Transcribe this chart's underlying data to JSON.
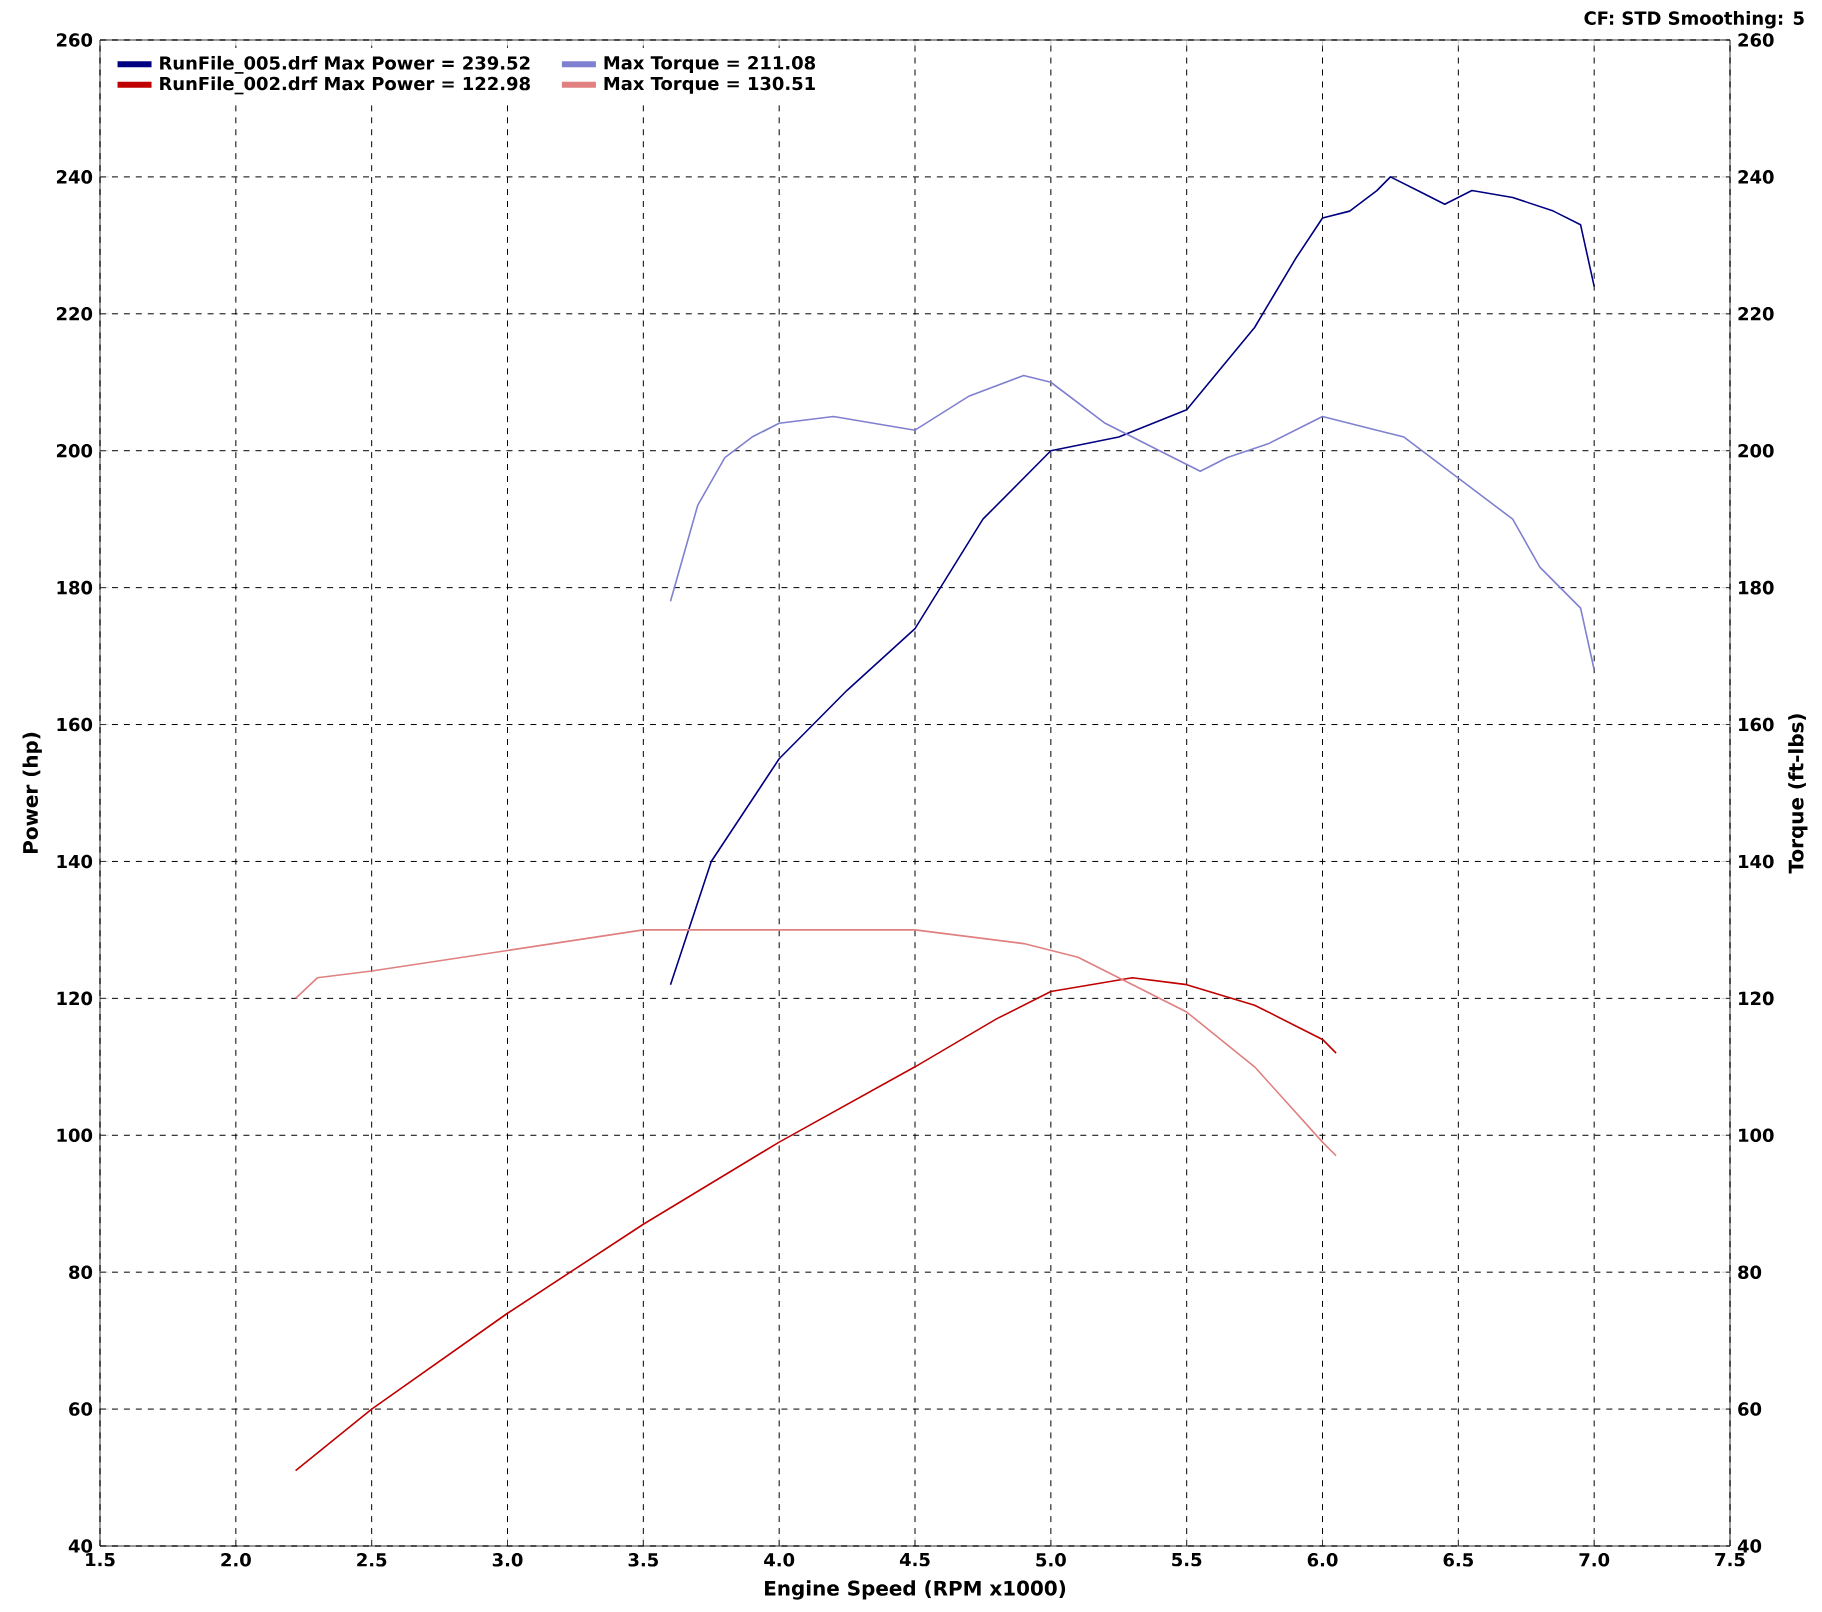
{
  "chart_data": {
    "type": "line",
    "annotations": [
      "CF: STD  Smoothing: 5"
    ],
    "xlabel": "Engine Speed (RPM x1000)",
    "ylabel": "Power (hp)",
    "y2label": "Torque (ft-lbs)",
    "xlim": [
      1.5,
      7.5
    ],
    "xticks": [
      1.5,
      {
        "value": 2,
        "label": "2.0"
      },
      2.5,
      {
        "value": 3,
        "label": "3.0"
      },
      3.5,
      {
        "value": 4,
        "label": "4.0"
      },
      4.5,
      {
        "value": 5,
        "label": "5.0"
      },
      5.5,
      {
        "value": 6,
        "label": "6.0"
      },
      6.5,
      {
        "value": 7,
        "label": "7.0"
      },
      7.5
    ],
    "ylim": [
      40,
      260
    ],
    "yticks": [
      40,
      60,
      80,
      100,
      120,
      140,
      160,
      180,
      200,
      220,
      240,
      260
    ],
    "y2lim": [
      40,
      260
    ],
    "y2ticks": [
      40,
      60,
      80,
      100,
      120,
      140,
      160,
      180,
      200,
      220,
      240,
      260
    ],
    "grid": true,
    "legend": "top left",
    "line_style": "solid",
    "series": [
      {
        "name": "RunFile_005.drf Max Power = 239.52",
        "color": "#000080",
        "x": [
          3.6,
          3.75,
          4.0,
          4.25,
          4.5,
          4.75,
          5.0,
          5.25,
          5.5,
          5.75,
          5.9,
          6.0,
          6.1,
          6.2,
          6.25,
          6.35,
          6.45,
          6.55,
          6.7,
          6.85,
          6.95,
          7.0
        ],
        "values": [
          122,
          140,
          155,
          165,
          174,
          190,
          200,
          202,
          206,
          218,
          228,
          234,
          235,
          238,
          240,
          238,
          236,
          238,
          237,
          235,
          233,
          224
        ]
      },
      {
        "name": "Max Torque = 211.08",
        "color": "#8080d0",
        "x": [
          3.6,
          3.7,
          3.8,
          3.9,
          4.0,
          4.2,
          4.5,
          4.7,
          4.9,
          5.0,
          5.2,
          5.4,
          5.55,
          5.65,
          5.8,
          6.0,
          6.2,
          6.3,
          6.5,
          6.7,
          6.8,
          6.95,
          7.0
        ],
        "values": [
          178,
          192,
          199,
          202,
          204,
          205,
          203,
          208,
          211,
          210,
          204,
          200,
          197,
          199,
          201,
          205,
          203,
          202,
          196,
          190,
          183,
          177,
          168
        ]
      },
      {
        "name": "RunFile_002.drf Max Power = 122.98",
        "color": "#c00000",
        "x": [
          2.22,
          2.5,
          3.0,
          3.5,
          4.0,
          4.5,
          4.8,
          5.0,
          5.3,
          5.5,
          5.75,
          6.0,
          6.05
        ],
        "values": [
          51,
          60,
          74,
          87,
          99,
          110,
          117,
          121,
          123,
          122,
          119,
          114,
          112
        ]
      },
      {
        "name": "Max Torque = 130.51",
        "color": "#e08080",
        "x": [
          2.22,
          2.3,
          2.5,
          3.0,
          3.5,
          4.0,
          4.5,
          4.9,
          5.1,
          5.3,
          5.5,
          5.75,
          6.0,
          6.05
        ],
        "values": [
          120,
          123,
          124,
          127,
          130,
          130,
          130,
          128,
          126,
          122,
          118,
          110,
          99,
          97
        ]
      }
    ]
  }
}
